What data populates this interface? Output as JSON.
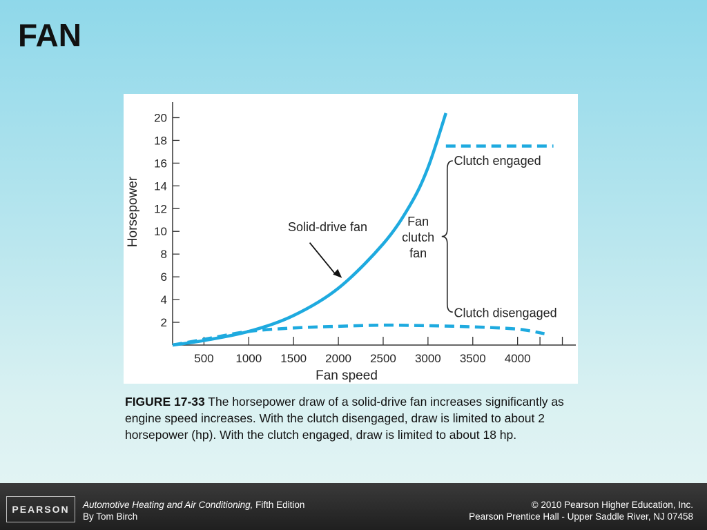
{
  "slide": {
    "title": "FAN"
  },
  "caption": {
    "figure_label": "FIGURE 17-33",
    "text": " The horsepower draw of a solid-drive fan increases significantly as engine speed increases. With the clutch disengaged, draw is limited to about 2 horsepower (hp). With the clutch engaged, draw is limited to about 18 hp."
  },
  "footer": {
    "logo_text": "PEARSON",
    "book_title": "Automotive Heating and Air Conditioning,",
    "edition": " Fifth Edition",
    "author": "By Tom Birch",
    "copyright_line1": "© 2010 Pearson Higher Education, Inc.",
    "copyright_line2": "Pearson Prentice Hall - Upper Saddle River, NJ 07458"
  },
  "chart_data": {
    "type": "line",
    "title": "",
    "xlabel": "Fan speed",
    "ylabel": "Horsepower",
    "xlim": [
      150,
      4650
    ],
    "ylim": [
      0,
      21
    ],
    "x_ticks": [
      500,
      1000,
      1500,
      2000,
      2500,
      3000,
      3500,
      4000
    ],
    "x_minor_ticks": [
      4250,
      4500
    ],
    "y_ticks": [
      2,
      4,
      6,
      8,
      10,
      12,
      14,
      16,
      18,
      20
    ],
    "color": "#1eaadf",
    "series": [
      {
        "name": "Solid-drive fan",
        "style": "solid",
        "x": [
          150,
          500,
          1000,
          1500,
          2000,
          2500,
          2800,
          3000,
          3200
        ],
        "y": [
          0,
          0.4,
          1.2,
          2.6,
          5.0,
          8.9,
          12.3,
          15.6,
          20.4
        ]
      },
      {
        "name": "Clutch disengaged",
        "style": "dashed",
        "x": [
          150,
          500,
          1000,
          1500,
          2000,
          2500,
          3000,
          3500,
          4000,
          4300
        ],
        "y": [
          0,
          0.5,
          1.2,
          1.5,
          1.65,
          1.75,
          1.7,
          1.6,
          1.4,
          1.0
        ]
      },
      {
        "name": "Clutch engaged",
        "style": "dashed",
        "x": [
          3200,
          4400
        ],
        "y": [
          17.5,
          17.5
        ]
      }
    ],
    "annotations": {
      "solid_drive": "Solid-drive fan",
      "clutch_engaged": "Clutch engaged",
      "clutch_disengaged": "Clutch disengaged",
      "fan_clutch_fan": [
        "Fan",
        "clutch",
        "fan"
      ]
    }
  }
}
